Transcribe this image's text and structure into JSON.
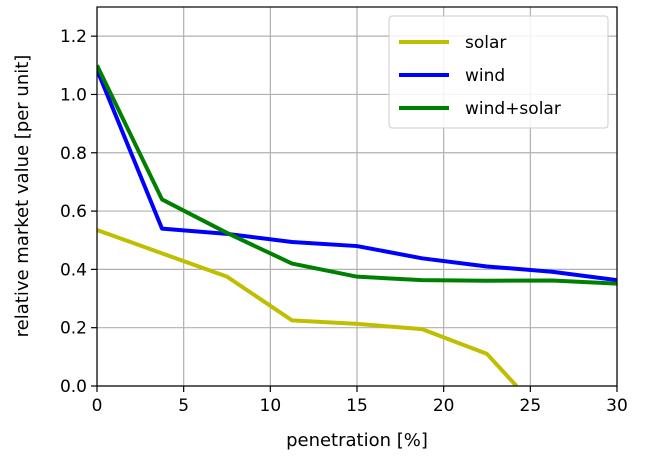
{
  "chart_data": {
    "type": "line",
    "title": "",
    "xlabel": "penetration [%]",
    "ylabel": "relative market value [per unit]",
    "xlim": [
      0,
      30
    ],
    "ylim": [
      0,
      1.3
    ],
    "xticks": [
      0,
      5,
      10,
      15,
      20,
      25,
      30
    ],
    "xtick_labels": [
      "0",
      "5",
      "10",
      "15",
      "20",
      "25",
      "30"
    ],
    "yticks": [
      0.0,
      0.2,
      0.4,
      0.6,
      0.8,
      1.0,
      1.2
    ],
    "ytick_labels": [
      "0.0",
      "0.2",
      "0.4",
      "0.6",
      "0.8",
      "1.0",
      "1.2"
    ],
    "grid": true,
    "legend_position": "top-right",
    "series": [
      {
        "name": "solar",
        "color": "#bfbf00",
        "x": [
          0,
          3.75,
          7.5,
          11.25,
          15,
          18.75,
          22.5,
          24.2
        ],
        "y": [
          0.535,
          0.455,
          0.375,
          0.225,
          0.213,
          0.195,
          0.11,
          0.0
        ]
      },
      {
        "name": "wind",
        "color": "#0000ff",
        "x": [
          0,
          3.75,
          7.5,
          11.25,
          15,
          18.75,
          22.5,
          26.25,
          30
        ],
        "y": [
          1.085,
          0.54,
          0.522,
          0.494,
          0.48,
          0.438,
          0.41,
          0.392,
          0.363
        ]
      },
      {
        "name": "wind+solar",
        "color": "#008000",
        "x": [
          0,
          3.75,
          7.5,
          11.25,
          15,
          18.75,
          22.5,
          26.25,
          30
        ],
        "y": [
          1.1,
          0.64,
          0.525,
          0.42,
          0.375,
          0.363,
          0.361,
          0.362,
          0.351
        ]
      }
    ]
  }
}
